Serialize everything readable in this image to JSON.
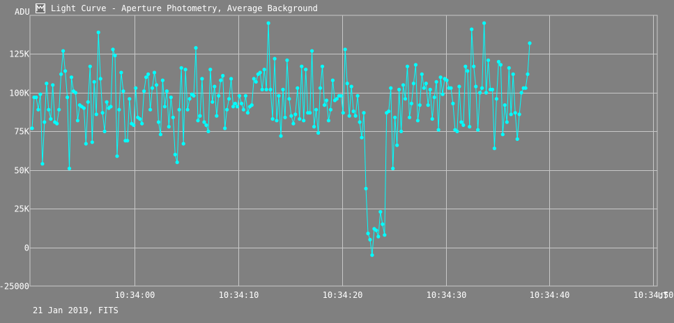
{
  "window": {
    "title": "Light Curve - Aperture Photometry, Average Background",
    "icon": "light-curve-icon"
  },
  "footer": {
    "caption": "21 Jan 2019, FITS"
  },
  "colors": {
    "background": "#808080",
    "grid": "#c8c8c8",
    "series": "#00ffff",
    "text": "#ffffff"
  },
  "chart_data": {
    "type": "line",
    "title": "Light Curve - Aperture Photometry, Average Background",
    "ylabel": "ADU",
    "xlabel": "UT",
    "ylim": [
      -25000,
      150000
    ],
    "xlim": [
      -5.1,
      55.4
    ],
    "x_unit": "seconds after 10:33:55 UT",
    "y_ticks": [
      {
        "value": 125000,
        "label": "125K"
      },
      {
        "value": 100000,
        "label": "100K"
      },
      {
        "value": 75000,
        "label": "75K"
      },
      {
        "value": 50000,
        "label": "50K"
      },
      {
        "value": 25000,
        "label": "25K"
      },
      {
        "value": 0,
        "label": "0"
      },
      {
        "value": -25000,
        "label": "-25000"
      }
    ],
    "x_ticks": [
      {
        "value": 5,
        "label": "10:34:00"
      },
      {
        "value": 15,
        "label": "10:34:10"
      },
      {
        "value": 25,
        "label": "10:34:20"
      },
      {
        "value": 35,
        "label": "10:34:30"
      },
      {
        "value": 45,
        "label": "10:34:40"
      },
      {
        "value": 55,
        "label": "10:34:50"
      }
    ],
    "grid": true,
    "marker": "circle",
    "series": [
      {
        "name": "",
        "y": [
          77000,
          97000,
          97000,
          89000,
          99000,
          54000,
          81000,
          106000,
          89000,
          83000,
          105000,
          81000,
          80000,
          89000,
          112000,
          127000,
          114000,
          97000,
          51000,
          110000,
          101000,
          100000,
          82000,
          92000,
          91000,
          90000,
          67000,
          94000,
          117000,
          68000,
          107000,
          86000,
          139000,
          109000,
          87000,
          75000,
          94000,
          90000,
          91000,
          128000,
          124000,
          59000,
          89000,
          113000,
          101000,
          69000,
          69000,
          96000,
          80000,
          79000,
          103000,
          84000,
          83000,
          80000,
          101000,
          110000,
          112000,
          89000,
          103000,
          113000,
          105000,
          81000,
          73000,
          108000,
          91000,
          101000,
          78000,
          97000,
          84000,
          60000,
          55000,
          89000,
          116000,
          67000,
          115000,
          89000,
          96000,
          99000,
          98000,
          129000,
          82000,
          85000,
          109000,
          81000,
          79000,
          75000,
          115000,
          94000,
          104000,
          85000,
          98000,
          108000,
          111000,
          77000,
          89000,
          96000,
          109000,
          91000,
          93000,
          91000,
          98000,
          93000,
          89000,
          98000,
          87000,
          91000,
          92000,
          109000,
          107000,
          112000,
          113000,
          102000,
          115000,
          102000,
          145000,
          102000,
          83000,
          122000,
          82000,
          98000,
          72000,
          102000,
          84000,
          121000,
          96000,
          85000,
          80000,
          86000,
          103000,
          83000,
          117000,
          82000,
          115000,
          87000,
          87000,
          127000,
          78000,
          89000,
          74000,
          103000,
          117000,
          92000,
          95000,
          82000,
          89000,
          108000,
          95000,
          96000,
          98000,
          98000,
          87000,
          128000,
          106000,
          85000,
          104000,
          88000,
          85000,
          98000,
          81000,
          71000,
          87000,
          38000,
          9000,
          5000,
          -5000,
          12000,
          11000,
          7000,
          23000,
          15000,
          8000,
          87000,
          88000,
          103000,
          51000,
          84000,
          66000,
          102000,
          75000,
          105000,
          96000,
          117000,
          84000,
          93000,
          106000,
          118000,
          82000,
          92000,
          112000,
          103000,
          106000,
          92000,
          102000,
          83000,
          97000,
          107000,
          76000,
          110000,
          99000,
          109000,
          108000,
          103000,
          103000,
          93000,
          76000,
          75000,
          104000,
          81000,
          79000,
          117000,
          114000,
          78000,
          141000,
          117000,
          104000,
          76000,
          100000,
          103000,
          145000,
          100000,
          121000,
          102000,
          102000,
          64000,
          96000,
          120000,
          118000,
          73000,
          92000,
          81000,
          116000,
          86000,
          112000,
          87000,
          70000,
          86000,
          100000,
          103000,
          103000,
          112000,
          132000
        ],
        "x_start": -4.9,
        "x_step": 0.2
      }
    ]
  }
}
